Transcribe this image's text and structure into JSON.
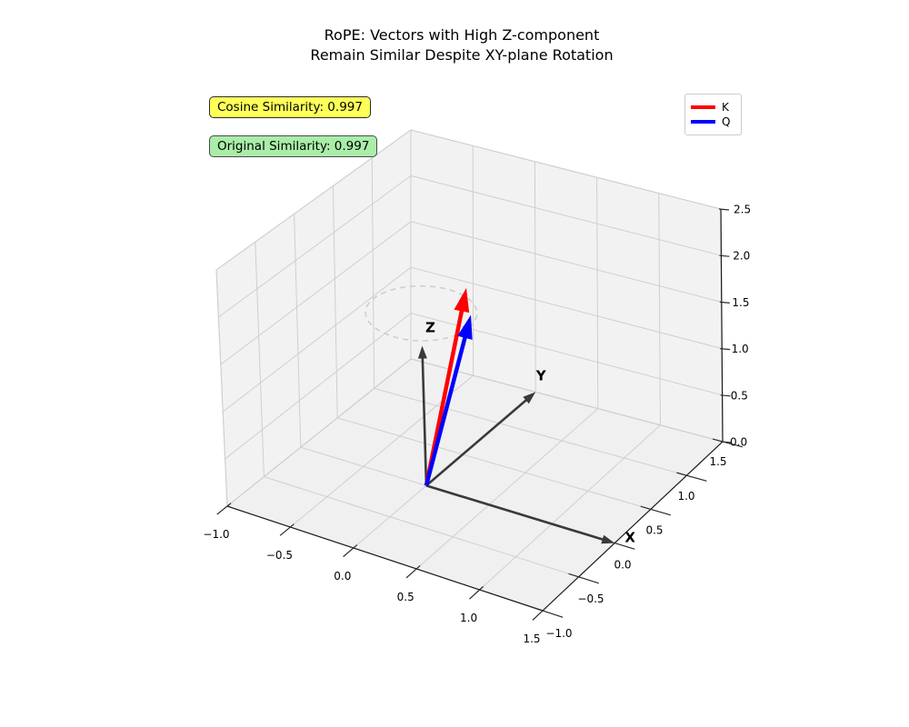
{
  "figure": {
    "title_line1": "RoPE: Vectors with High Z-component",
    "title_line2": "Remain Similar Despite XY-plane Rotation",
    "background": "#ffffff"
  },
  "annotations": {
    "cosine": {
      "text": "Cosine Similarity: 0.997",
      "bg": "#ffff59",
      "border": "#2b2b2b"
    },
    "original": {
      "text": "Original Similarity: 0.997",
      "bg": "#a9eda9",
      "border": "#4a4a4a"
    }
  },
  "legend": {
    "entries": [
      {
        "label": "K",
        "color": "#ff0000"
      },
      {
        "label": "Q",
        "color": "#0000ff"
      }
    ]
  },
  "chart_data": {
    "type": "3d-vector-plot",
    "title": "RoPE: Vectors with High Z-component\nRemain Similar Despite XY-plane Rotation",
    "cosine_similarity": 0.997,
    "original_similarity": 0.997,
    "axes": {
      "x": {
        "label": "X",
        "range": [
          -1.0,
          1.5
        ],
        "tick_values": [
          -1.0,
          -0.5,
          0.0,
          0.5,
          1.0,
          1.5
        ],
        "tick_labels": [
          "−1.0",
          "−0.5",
          "0.0",
          "0.5",
          "1.0",
          "1.5"
        ]
      },
      "y": {
        "label": "Y",
        "range": [
          -1.0,
          1.5
        ],
        "tick_values": [
          -1.0,
          -0.5,
          0.0,
          0.5,
          1.0,
          1.5
        ],
        "tick_labels": [
          "−1.0",
          "−0.5",
          "0.0",
          "0.5",
          "1.0",
          "1.5"
        ]
      },
      "z": {
        "label": "Z",
        "range": [
          0.0,
          2.5
        ],
        "tick_values": [
          0.0,
          0.5,
          1.0,
          1.5,
          2.0,
          2.5
        ],
        "tick_labels": [
          "0.0",
          "0.5",
          "1.0",
          "1.5",
          "2.0",
          "2.5"
        ]
      }
    },
    "grid": true,
    "pane_color": "#f2f2f2",
    "floor_color": "#f0f0f0",
    "grid_color": "#cfcfcf",
    "basis_arrows": [
      {
        "label": "X",
        "start": [
          0,
          0,
          0
        ],
        "end": [
          1.5,
          0,
          0
        ],
        "color": "#3a3a3a"
      },
      {
        "label": "Y",
        "start": [
          0,
          0,
          0
        ],
        "end": [
          0,
          1.5,
          0
        ],
        "color": "#3a3a3a"
      },
      {
        "label": "Z",
        "start": [
          0,
          0,
          0
        ],
        "end": [
          0,
          0,
          1.5
        ],
        "color": "#3a3a3a"
      }
    ],
    "vectors": [
      {
        "name": "K",
        "color": "#ff0000",
        "start": [
          0,
          0,
          0
        ],
        "end": [
          0.15,
          0.35,
          1.95
        ]
      },
      {
        "name": "Q",
        "color": "#0000ff",
        "start": [
          0,
          0,
          0
        ],
        "end": [
          0.2,
          0.32,
          1.7
        ]
      }
    ],
    "rotation_circle": {
      "center": [
        0,
        0,
        1.85
      ],
      "radius": 0.38,
      "style": "dashed",
      "color": "#cccccc"
    }
  }
}
